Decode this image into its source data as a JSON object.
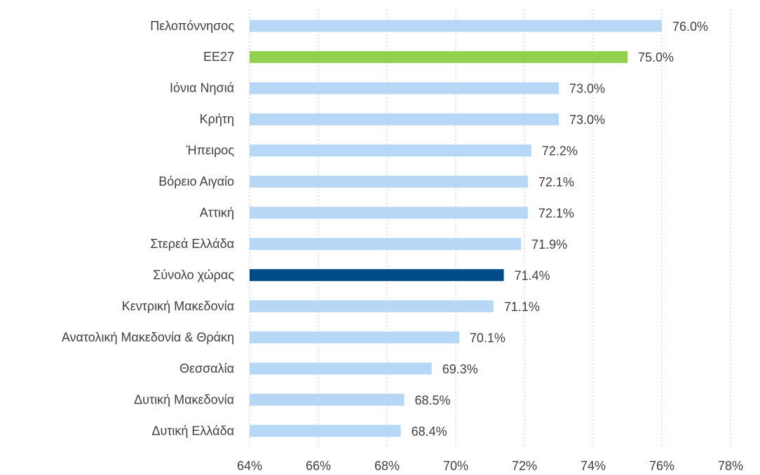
{
  "chart_data": {
    "type": "hbar",
    "categories": [
      "Πελοπόννησος",
      "ΕΕ27",
      "Ιόνια Νησιά",
      "Κρήτη",
      "Ήπειρος",
      "Βόρειο Αιγαίο",
      "Αττική",
      "Στερεά Ελλάδα",
      "Σύνολο χώρας",
      "Κεντρική Μακεδονία",
      "Ανατολική Μακεδονία & Θράκη",
      "Θεσσαλία",
      "Δυτική Μακεδονία",
      "Δυτική Ελλάδα"
    ],
    "values": [
      76.0,
      75.0,
      73.0,
      73.0,
      72.2,
      72.1,
      72.1,
      71.9,
      71.4,
      71.1,
      70.1,
      69.3,
      68.5,
      68.4
    ],
    "value_labels": [
      "76.0%",
      "75.0%",
      "73.0%",
      "73.0%",
      "72.2%",
      "72.1%",
      "72.1%",
      "71.9%",
      "71.4%",
      "71.1%",
      "70.1%",
      "69.3%",
      "68.5%",
      "68.4%"
    ],
    "colors": [
      "#b7d7f7",
      "#92d050",
      "#b7d7f7",
      "#b7d7f7",
      "#b7d7f7",
      "#b7d7f7",
      "#b7d7f7",
      "#b7d7f7",
      "#004a87",
      "#b7d7f7",
      "#b7d7f7",
      "#b7d7f7",
      "#b7d7f7",
      "#b7d7f7"
    ],
    "xlim": [
      64,
      78
    ],
    "xticks": [
      {
        "value": 64,
        "label": "64%"
      },
      {
        "value": 66,
        "label": "66%"
      },
      {
        "value": 68,
        "label": "68%"
      },
      {
        "value": 70,
        "label": "70%"
      },
      {
        "value": 72,
        "label": "72%"
      },
      {
        "value": 74,
        "label": "74%"
      },
      {
        "value": 76,
        "label": "76%"
      },
      {
        "value": 78,
        "label": "78%"
      }
    ],
    "grid": true
  }
}
